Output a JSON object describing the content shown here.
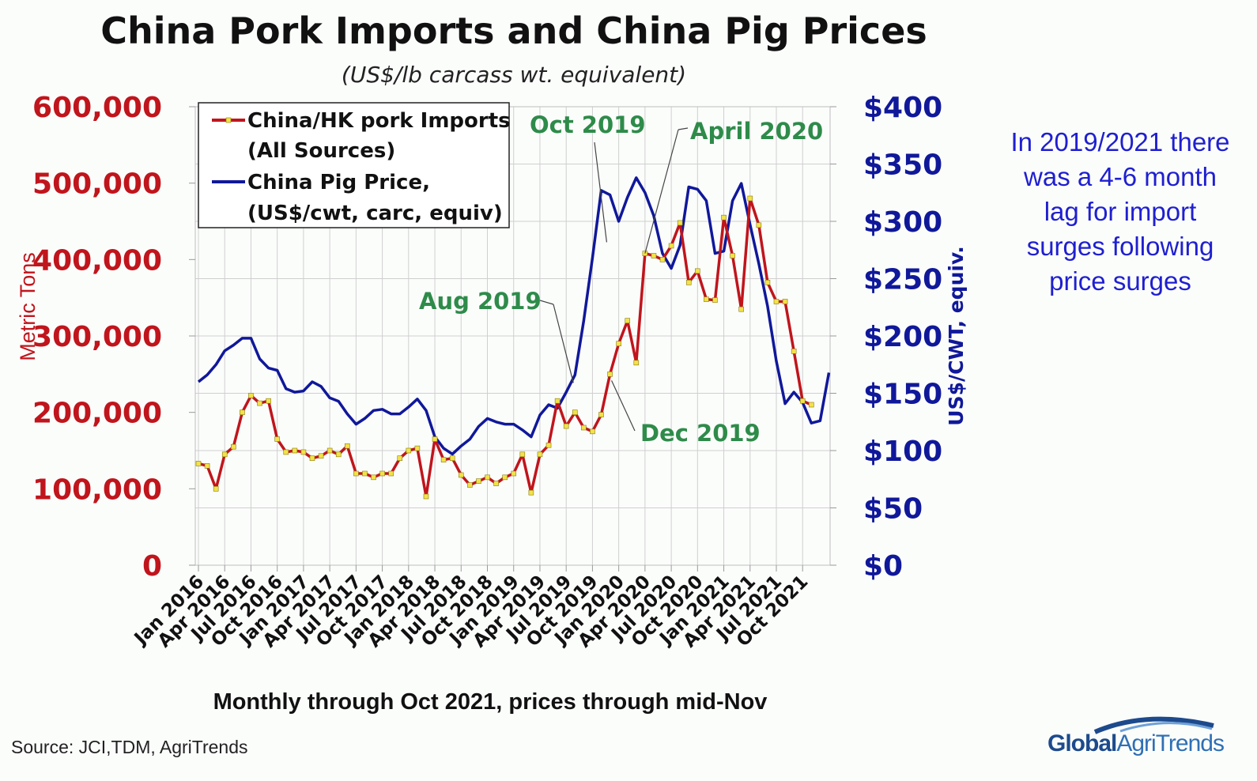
{
  "header": {
    "title": "China Pork Imports and China Pig Prices",
    "subtitle": "(US$/lb carcass wt. equivalent)"
  },
  "side_note": "In 2019/2021 there was a 4-6 month lag for import surges following price surges",
  "source": "Source:  JCI,TDM, AgriTrends",
  "logo": {
    "part1": "Global",
    "part2": "AgriTrends"
  },
  "colors": {
    "imports": "#c0151c",
    "price": "#10189a",
    "marker": "#f2e24a",
    "annotation": "#2e8b4a",
    "grid": "#cfcfcf"
  },
  "chart_data": {
    "type": "line",
    "title": "China Pork Imports and China Pig Prices",
    "subtitle": "(US$/lb carcass wt. equivalent)",
    "xlabel": "Monthly through Oct 2021, prices through mid-Nov",
    "ylabel_left": "Metric Tons",
    "ylabel_right": "US$/CWT, equiv.",
    "ylim_left": [
      0,
      600000
    ],
    "ylim_right": [
      0,
      400
    ],
    "left_ticks": [
      "0",
      "100,000",
      "200,000",
      "300,000",
      "400,000",
      "500,000",
      "600,000"
    ],
    "right_ticks": [
      "$0",
      "$50",
      "$100",
      "$150",
      "$200",
      "$250",
      "$300",
      "$350",
      "$400"
    ],
    "x_tick_labels": [
      "Jan 2016",
      "Apr 2016",
      "Jul 2016",
      "Oct 2016",
      "Jan 2017",
      "Apr 2017",
      "Jul 2017",
      "Oct 2017",
      "Jan 2018",
      "Apr 2018",
      "Jul 2018",
      "Oct 2018",
      "Jan 2019",
      "Apr 2019",
      "Jul 2019",
      "Oct 2019",
      "Jan 2020",
      "Apr 2020",
      "Jul 2020",
      "Oct 2020",
      "Jan 2021",
      "Apr 2021",
      "Jul 2021",
      "Oct 2021"
    ],
    "grid": true,
    "legend_position": "top-left",
    "legend": [
      {
        "line1": "China/HK pork Imports",
        "line2": "(All Sources)"
      },
      {
        "line1": "China Pig Price,",
        "line2": "(US$/cwt, carc, equiv)"
      }
    ],
    "series": [
      {
        "name": "China/HK pork Imports (All Sources)",
        "axis": "left",
        "values": [
          133000,
          130000,
          100000,
          145000,
          155000,
          200000,
          222000,
          212000,
          215000,
          165000,
          148000,
          150000,
          148000,
          140000,
          143000,
          150000,
          145000,
          156000,
          120000,
          120000,
          115000,
          120000,
          120000,
          140000,
          150000,
          153000,
          90000,
          165000,
          138000,
          140000,
          118000,
          105000,
          110000,
          115000,
          107000,
          115000,
          120000,
          145000,
          95000,
          145000,
          157000,
          215000,
          182000,
          200000,
          180000,
          175000,
          197000,
          250000,
          290000,
          320000,
          265000,
          408000,
          405000,
          400000,
          418000,
          448000,
          370000,
          385000,
          348000,
          347000,
          455000,
          405000,
          335000,
          480000,
          445000,
          370000,
          345000,
          345000,
          280000,
          215000,
          210000
        ]
      },
      {
        "name": "China Pig Price, (US$/cwt, carc, equiv)",
        "axis": "right",
        "values": [
          160,
          166,
          175,
          187,
          192,
          198,
          198,
          180,
          172,
          170,
          154,
          151,
          152,
          160,
          156,
          146,
          143,
          132,
          123,
          128,
          135,
          136,
          132,
          132,
          138,
          145,
          135,
          112,
          102,
          97,
          104,
          110,
          121,
          128,
          125,
          123,
          123,
          118,
          112,
          131,
          140,
          137,
          151,
          166,
          213,
          268,
          327,
          323,
          300,
          321,
          338,
          325,
          305,
          272,
          259,
          279,
          330,
          328,
          318,
          272,
          274,
          318,
          333,
          297,
          263,
          226,
          178,
          141,
          151,
          142,
          124,
          126,
          168
        ]
      }
    ],
    "annotations": [
      "Oct 2019",
      "April 2020",
      "Aug 2019",
      "Dec 2019"
    ]
  }
}
